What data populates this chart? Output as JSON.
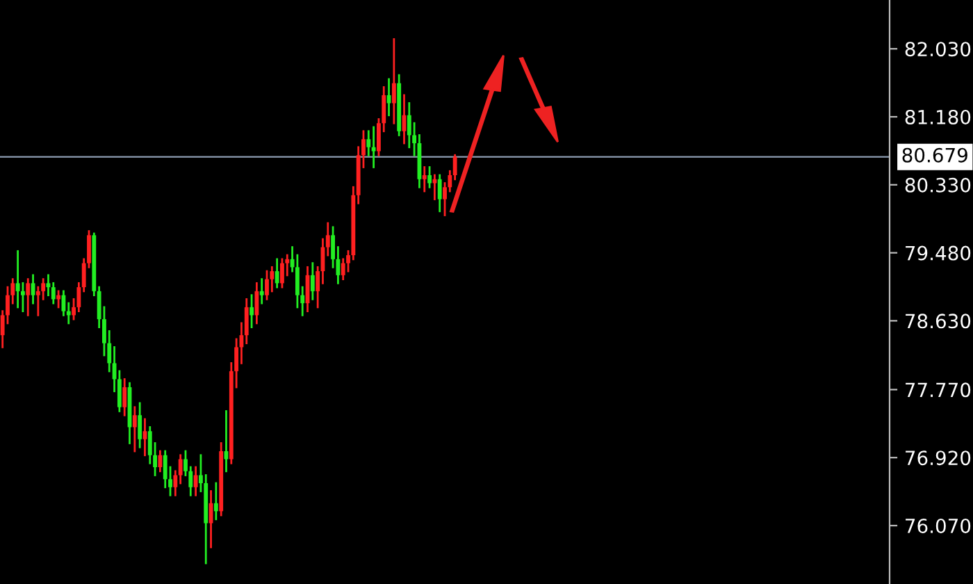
{
  "chart_data": {
    "type": "candlestick",
    "categories": [
      null,
      null,
      null,
      null,
      null,
      null,
      null,
      null,
      null,
      null,
      null,
      null,
      null,
      null,
      null,
      null,
      null,
      null,
      null,
      null,
      null,
      null,
      null,
      null,
      null,
      null,
      null,
      null,
      null,
      null,
      null,
      null,
      null,
      null,
      null,
      null,
      null,
      null,
      null,
      null,
      null,
      null,
      null,
      null,
      null,
      null,
      null,
      null,
      null,
      null,
      null,
      null,
      null,
      null,
      null,
      null,
      null,
      null,
      null,
      null,
      null,
      null,
      null,
      null,
      null,
      null,
      null,
      null,
      null,
      null,
      null,
      null,
      null,
      null,
      null,
      null,
      null,
      null,
      null,
      null,
      null,
      null,
      null,
      null,
      null,
      null,
      null,
      null,
      null,
      null,
      null,
      null,
      null,
      null,
      null,
      null,
      null,
      null,
      null,
      null,
      null,
      null,
      null,
      null,
      null,
      null,
      null,
      null,
      null,
      null,
      null,
      null,
      null,
      null,
      null,
      null,
      null,
      null,
      null,
      null,
      null,
      null,
      null,
      null,
      null,
      null,
      null,
      null,
      null,
      null,
      null,
      null,
      null,
      null,
      null,
      null,
      null,
      null,
      null,
      null,
      null,
      null,
      null,
      null,
      null,
      null,
      null,
      null,
      null,
      null,
      null,
      null,
      null,
      null,
      null,
      null,
      null,
      null,
      null,
      null,
      null,
      null,
      null,
      null,
      null,
      null,
      null,
      null,
      null,
      null,
      null,
      null,
      null,
      null,
      null
    ],
    "ohlc": [
      [
        78.45,
        78.75,
        78.3,
        78.7
      ],
      [
        78.7,
        79.05,
        78.6,
        78.95
      ],
      [
        78.95,
        79.15,
        78.85,
        79.1
      ],
      [
        79.1,
        79.5,
        78.8,
        79.0
      ],
      [
        79.0,
        79.1,
        78.75,
        78.95
      ],
      [
        78.95,
        79.15,
        78.7,
        79.1
      ],
      [
        79.1,
        79.2,
        78.85,
        78.95
      ],
      [
        78.95,
        79.05,
        78.7,
        79.0
      ],
      [
        79.0,
        79.15,
        78.9,
        79.1
      ],
      [
        79.1,
        79.2,
        78.95,
        79.05
      ],
      [
        79.05,
        79.1,
        78.85,
        78.9
      ],
      [
        78.9,
        79.0,
        78.8,
        78.95
      ],
      [
        78.95,
        79.0,
        78.7,
        78.75
      ],
      [
        78.75,
        78.85,
        78.6,
        78.7
      ],
      [
        78.7,
        78.9,
        78.65,
        78.8
      ],
      [
        78.8,
        79.1,
        78.75,
        79.05
      ],
      [
        79.05,
        79.4,
        79.0,
        79.35
      ],
      [
        79.35,
        79.75,
        79.3,
        79.7
      ],
      [
        79.7,
        79.72,
        78.95,
        79.0
      ],
      [
        79.0,
        79.05,
        78.55,
        78.65
      ],
      [
        78.65,
        78.8,
        78.2,
        78.35
      ],
      [
        78.35,
        78.5,
        78.0,
        78.1
      ],
      [
        78.1,
        78.3,
        77.75,
        77.9
      ],
      [
        77.9,
        78.0,
        77.5,
        77.55
      ],
      [
        77.55,
        77.9,
        77.45,
        77.8
      ],
      [
        77.8,
        77.85,
        77.1,
        77.3
      ],
      [
        77.3,
        77.55,
        77.0,
        77.45
      ],
      [
        77.45,
        77.6,
        77.05,
        77.15
      ],
      [
        77.15,
        77.4,
        76.95,
        77.25
      ],
      [
        77.25,
        77.3,
        76.85,
        76.95
      ],
      [
        76.95,
        77.1,
        76.7,
        76.8
      ],
      [
        76.8,
        77.0,
        76.75,
        76.95
      ],
      [
        76.95,
        77.0,
        76.55,
        76.65
      ],
      [
        76.65,
        76.8,
        76.45,
        76.55
      ],
      [
        76.55,
        76.75,
        76.45,
        76.7
      ],
      [
        76.7,
        76.95,
        76.6,
        76.9
      ],
      [
        76.9,
        77.0,
        76.7,
        76.75
      ],
      [
        76.75,
        76.8,
        76.45,
        76.55
      ],
      [
        76.55,
        76.8,
        76.45,
        76.7
      ],
      [
        76.7,
        76.95,
        76.5,
        76.6
      ],
      [
        76.6,
        76.7,
        75.6,
        76.1
      ],
      [
        76.1,
        76.5,
        75.8,
        76.35
      ],
      [
        76.35,
        76.6,
        76.15,
        76.25
      ],
      [
        76.25,
        77.1,
        76.2,
        77.0
      ],
      [
        77.0,
        77.5,
        76.75,
        76.9
      ],
      [
        76.9,
        78.1,
        76.85,
        78.0
      ],
      [
        78.0,
        78.4,
        77.8,
        78.3
      ],
      [
        78.3,
        78.6,
        78.1,
        78.45
      ],
      [
        78.45,
        78.9,
        78.35,
        78.8
      ],
      [
        78.8,
        78.95,
        78.55,
        78.7
      ],
      [
        78.7,
        79.1,
        78.6,
        79.0
      ],
      [
        79.0,
        79.15,
        78.85,
        78.95
      ],
      [
        78.95,
        79.25,
        78.9,
        79.15
      ],
      [
        79.15,
        79.3,
        79.0,
        79.25
      ],
      [
        79.25,
        79.4,
        79.05,
        79.1
      ],
      [
        79.1,
        79.4,
        79.05,
        79.35
      ],
      [
        79.35,
        79.45,
        79.2,
        79.4
      ],
      [
        79.4,
        79.55,
        79.25,
        79.3
      ],
      [
        79.3,
        79.45,
        78.8,
        78.95
      ],
      [
        78.95,
        79.05,
        78.7,
        78.85
      ],
      [
        78.85,
        79.3,
        78.75,
        79.2
      ],
      [
        79.2,
        79.35,
        78.9,
        79.0
      ],
      [
        79.0,
        79.3,
        78.8,
        79.25
      ],
      [
        79.25,
        79.65,
        79.1,
        79.55
      ],
      [
        79.55,
        79.85,
        79.45,
        79.7
      ],
      [
        79.7,
        79.8,
        79.3,
        79.4
      ],
      [
        79.4,
        79.55,
        79.1,
        79.2
      ],
      [
        79.2,
        79.4,
        79.15,
        79.35
      ],
      [
        79.35,
        79.5,
        79.25,
        79.45
      ],
      [
        79.45,
        80.3,
        79.4,
        80.2
      ],
      [
        80.2,
        80.8,
        80.1,
        80.7
      ],
      [
        80.7,
        81.0,
        80.55,
        80.9
      ],
      [
        80.9,
        81.0,
        80.7,
        80.8
      ],
      [
        80.8,
        81.05,
        80.55,
        80.75
      ],
      [
        80.75,
        81.15,
        80.7,
        81.1
      ],
      [
        81.1,
        81.55,
        81.0,
        81.45
      ],
      [
        81.45,
        81.65,
        81.2,
        81.35
      ],
      [
        81.35,
        82.15,
        81.1,
        81.6
      ],
      [
        81.6,
        81.7,
        80.95,
        81.0
      ],
      [
        81.0,
        81.45,
        80.85,
        81.2
      ],
      [
        81.2,
        81.35,
        80.8,
        80.95
      ],
      [
        80.95,
        81.1,
        80.7,
        80.85
      ],
      [
        80.85,
        80.95,
        80.3,
        80.4
      ],
      [
        80.4,
        80.55,
        80.25,
        80.45
      ],
      [
        80.45,
        80.55,
        80.3,
        80.35
      ],
      [
        80.35,
        80.45,
        80.15,
        80.4
      ],
      [
        80.4,
        80.45,
        80.0,
        80.15
      ],
      [
        80.15,
        80.35,
        79.95,
        80.3
      ],
      [
        80.3,
        80.5,
        80.25,
        80.45
      ],
      [
        80.45,
        80.7,
        80.4,
        80.68
      ],
      null,
      null,
      null,
      null,
      null,
      null,
      null,
      null,
      null,
      null,
      null,
      null,
      null,
      null,
      null,
      null,
      null,
      null,
      null,
      null,
      null,
      null,
      null,
      null,
      null,
      null,
      null,
      null,
      null,
      null,
      null,
      null,
      null,
      null,
      null,
      null,
      null,
      null,
      null,
      null,
      null,
      null,
      null,
      null,
      null,
      null,
      null,
      null,
      null,
      null,
      null,
      null,
      null,
      null,
      null,
      null,
      null,
      null,
      null,
      null,
      null,
      null,
      null,
      null,
      null,
      null,
      null,
      null,
      null,
      null,
      null,
      null,
      null,
      null,
      null,
      null,
      null,
      null,
      null,
      null,
      null,
      null,
      null,
      null,
      null
    ],
    "colors": [
      "#ff2020",
      "#ff2020",
      "#ff2020",
      "#22ee22",
      "#22ee22",
      "#ff2020",
      "#22ee22",
      "#ff2020",
      "#ff2020",
      "#22ee22",
      "#22ee22",
      "#ff2020",
      "#22ee22",
      "#22ee22",
      "#ff2020",
      "#ff2020",
      "#ff2020",
      "#ff2020",
      "#22ee22",
      "#22ee22",
      "#22ee22",
      "#22ee22",
      "#22ee22",
      "#22ee22",
      "#ff2020",
      "#22ee22",
      "#ff2020",
      "#22ee22",
      "#ff2020",
      "#22ee22",
      "#22ee22",
      "#ff2020",
      "#22ee22",
      "#22ee22",
      "#ff2020",
      "#ff2020",
      "#22ee22",
      "#22ee22",
      "#ff2020",
      "#22ee22",
      "#22ee22",
      "#ff2020",
      "#22ee22",
      "#ff2020",
      "#22ee22",
      "#ff2020",
      "#ff2020",
      "#ff2020",
      "#ff2020",
      "#22ee22",
      "#ff2020",
      "#22ee22",
      "#ff2020",
      "#ff2020",
      "#22ee22",
      "#ff2020",
      "#ff2020",
      "#22ee22",
      "#22ee22",
      "#22ee22",
      "#ff2020",
      "#22ee22",
      "#ff2020",
      "#ff2020",
      "#ff2020",
      "#22ee22",
      "#22ee22",
      "#ff2020",
      "#ff2020",
      "#ff2020",
      "#ff2020",
      "#ff2020",
      "#22ee22",
      "#22ee22",
      "#ff2020",
      "#ff2020",
      "#22ee22",
      "#ff2020",
      "#22ee22",
      "#ff2020",
      "#22ee22",
      "#22ee22",
      "#22ee22",
      "#ff2020",
      "#22ee22",
      "#ff2020",
      "#22ee22",
      "#ff2020",
      "#ff2020",
      "#ff2020",
      null,
      null,
      null,
      null,
      null,
      null,
      null,
      null,
      null,
      null,
      null,
      null,
      null,
      null,
      null,
      null,
      null,
      null,
      null,
      null,
      null,
      null,
      null,
      null,
      null,
      null,
      null,
      null,
      null,
      null,
      null,
      null,
      null,
      null,
      null,
      null,
      null,
      null,
      null,
      null,
      null,
      null,
      null,
      null,
      null,
      null,
      null,
      null,
      null,
      null,
      null,
      null,
      null,
      null,
      null,
      null,
      null,
      null,
      null,
      null,
      null,
      null,
      null,
      null,
      null,
      null,
      null,
      null,
      null,
      null,
      null,
      null,
      null,
      null,
      null,
      null,
      null,
      null,
      null,
      null,
      null,
      null,
      null,
      null,
      null
    ],
    "ylim": [
      75.34,
      82.64
    ],
    "yticks": [
      {
        "value": 76.07,
        "label": "76.070"
      },
      {
        "value": 76.92,
        "label": "76.920"
      },
      {
        "value": 77.77,
        "label": "77.770"
      },
      {
        "value": 78.63,
        "label": "78.630"
      },
      {
        "value": 79.48,
        "label": "79.480"
      },
      {
        "value": 80.33,
        "label": "80.330"
      },
      {
        "value": 81.18,
        "label": "81.180"
      },
      {
        "value": 82.03,
        "label": "82.030"
      }
    ],
    "ref_lines": [
      {
        "axis": "y",
        "value": 80.679,
        "label": "80.679",
        "color": "#8c9bb0"
      }
    ],
    "grid": false
  }
}
